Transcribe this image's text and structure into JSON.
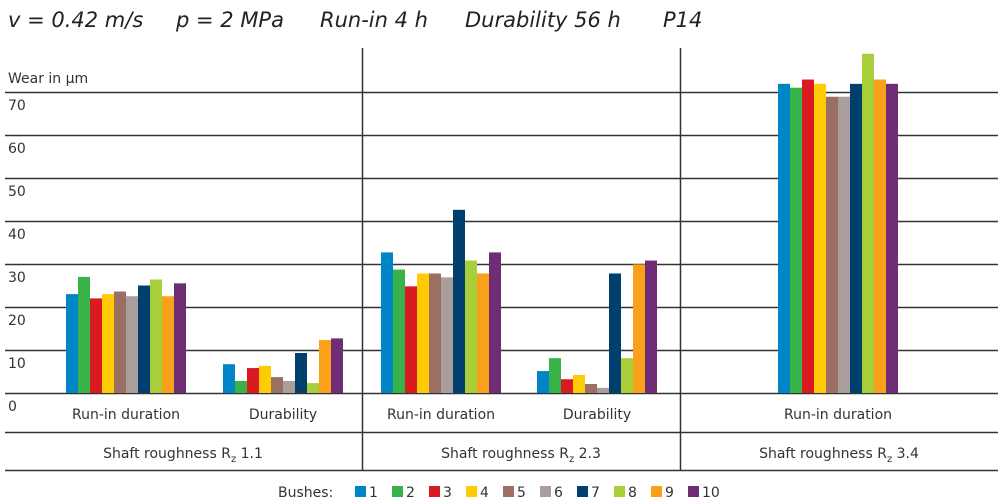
{
  "chart_data": {
    "type": "bar",
    "title_parts": [
      "v = 0.42 m/s",
      "p = 2 MPa",
      "Run-in 4 h",
      "Durability 56 h",
      "P14"
    ],
    "ylabel": "Wear in µm",
    "ylim": [
      0,
      70
    ],
    "yticks": [
      0,
      10,
      20,
      30,
      40,
      50,
      60,
      70
    ],
    "grid": true,
    "legend_title": "Bushes:",
    "legend_position": "bottom",
    "series_names": [
      "1",
      "2",
      "3",
      "4",
      "5",
      "6",
      "7",
      "8",
      "9",
      "10"
    ],
    "colors": [
      "#0085c7",
      "#37b34a",
      "#d91a21",
      "#ffcb05",
      "#9b6f63",
      "#aa9e9a",
      "#003f6e",
      "#a8cf3a",
      "#f9a11b",
      "#6e2d74"
    ],
    "sections": [
      {
        "label": "Shaft roughness R",
        "sub": "z",
        "value": "1.1",
        "groups": [
          {
            "label": "Run-in duration",
            "values": [
              23,
              27,
              22,
              23,
              23.6,
              22.5,
              25,
              26.4,
              22.5,
              25.5
            ]
          },
          {
            "label": "Durability",
            "values": [
              6.7,
              2.8,
              5.8,
              6.3,
              3.7,
              2.8,
              9.3,
              2.3,
              12.3,
              12.7
            ]
          }
        ]
      },
      {
        "label": "Shaft roughness R",
        "sub": "z",
        "value": "2.3",
        "groups": [
          {
            "label": "Run-in duration",
            "values": [
              32.7,
              28.7,
              24.8,
              27.8,
              27.8,
              26.9,
              42.6,
              30.8,
              27.8,
              32.7
            ]
          },
          {
            "label": "Durability",
            "values": [
              5.1,
              8.1,
              3.2,
              4.2,
              2.1,
              1.2,
              27.8,
              8.1,
              29.9,
              30.8
            ]
          }
        ]
      },
      {
        "label": "Shaft roughness R",
        "sub": "z",
        "value": "3.4",
        "groups": [
          {
            "label": "Run-in duration",
            "values": [
              71.9,
              71,
              72.9,
              71.9,
              68.9,
              68.9,
              71.9,
              78.9,
              72.9,
              71.9
            ]
          }
        ]
      }
    ]
  }
}
